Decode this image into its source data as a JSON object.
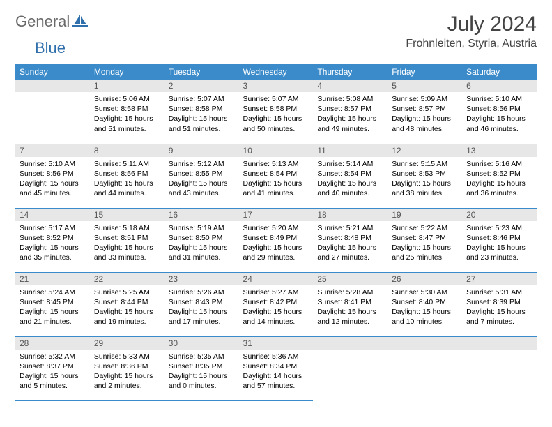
{
  "logo": {
    "text1": "General",
    "text2": "Blue"
  },
  "title": "July 2024",
  "location": "Frohnleiten, Styria, Austria",
  "colors": {
    "header_bg": "#3b8bca",
    "header_fg": "#ffffff",
    "daynum_bg": "#e7e7e7",
    "border": "#3b8bca",
    "logo_gray": "#6a6a6a",
    "logo_blue": "#2f6fab"
  },
  "day_headers": [
    "Sunday",
    "Monday",
    "Tuesday",
    "Wednesday",
    "Thursday",
    "Friday",
    "Saturday"
  ],
  "weeks": [
    [
      {
        "n": "",
        "sr": "",
        "ss": "",
        "dl": ""
      },
      {
        "n": "1",
        "sr": "5:06 AM",
        "ss": "8:58 PM",
        "dl": "15 hours and 51 minutes."
      },
      {
        "n": "2",
        "sr": "5:07 AM",
        "ss": "8:58 PM",
        "dl": "15 hours and 51 minutes."
      },
      {
        "n": "3",
        "sr": "5:07 AM",
        "ss": "8:58 PM",
        "dl": "15 hours and 50 minutes."
      },
      {
        "n": "4",
        "sr": "5:08 AM",
        "ss": "8:57 PM",
        "dl": "15 hours and 49 minutes."
      },
      {
        "n": "5",
        "sr": "5:09 AM",
        "ss": "8:57 PM",
        "dl": "15 hours and 48 minutes."
      },
      {
        "n": "6",
        "sr": "5:10 AM",
        "ss": "8:56 PM",
        "dl": "15 hours and 46 minutes."
      }
    ],
    [
      {
        "n": "7",
        "sr": "5:10 AM",
        "ss": "8:56 PM",
        "dl": "15 hours and 45 minutes."
      },
      {
        "n": "8",
        "sr": "5:11 AM",
        "ss": "8:56 PM",
        "dl": "15 hours and 44 minutes."
      },
      {
        "n": "9",
        "sr": "5:12 AM",
        "ss": "8:55 PM",
        "dl": "15 hours and 43 minutes."
      },
      {
        "n": "10",
        "sr": "5:13 AM",
        "ss": "8:54 PM",
        "dl": "15 hours and 41 minutes."
      },
      {
        "n": "11",
        "sr": "5:14 AM",
        "ss": "8:54 PM",
        "dl": "15 hours and 40 minutes."
      },
      {
        "n": "12",
        "sr": "5:15 AM",
        "ss": "8:53 PM",
        "dl": "15 hours and 38 minutes."
      },
      {
        "n": "13",
        "sr": "5:16 AM",
        "ss": "8:52 PM",
        "dl": "15 hours and 36 minutes."
      }
    ],
    [
      {
        "n": "14",
        "sr": "5:17 AM",
        "ss": "8:52 PM",
        "dl": "15 hours and 35 minutes."
      },
      {
        "n": "15",
        "sr": "5:18 AM",
        "ss": "8:51 PM",
        "dl": "15 hours and 33 minutes."
      },
      {
        "n": "16",
        "sr": "5:19 AM",
        "ss": "8:50 PM",
        "dl": "15 hours and 31 minutes."
      },
      {
        "n": "17",
        "sr": "5:20 AM",
        "ss": "8:49 PM",
        "dl": "15 hours and 29 minutes."
      },
      {
        "n": "18",
        "sr": "5:21 AM",
        "ss": "8:48 PM",
        "dl": "15 hours and 27 minutes."
      },
      {
        "n": "19",
        "sr": "5:22 AM",
        "ss": "8:47 PM",
        "dl": "15 hours and 25 minutes."
      },
      {
        "n": "20",
        "sr": "5:23 AM",
        "ss": "8:46 PM",
        "dl": "15 hours and 23 minutes."
      }
    ],
    [
      {
        "n": "21",
        "sr": "5:24 AM",
        "ss": "8:45 PM",
        "dl": "15 hours and 21 minutes."
      },
      {
        "n": "22",
        "sr": "5:25 AM",
        "ss": "8:44 PM",
        "dl": "15 hours and 19 minutes."
      },
      {
        "n": "23",
        "sr": "5:26 AM",
        "ss": "8:43 PM",
        "dl": "15 hours and 17 minutes."
      },
      {
        "n": "24",
        "sr": "5:27 AM",
        "ss": "8:42 PM",
        "dl": "15 hours and 14 minutes."
      },
      {
        "n": "25",
        "sr": "5:28 AM",
        "ss": "8:41 PM",
        "dl": "15 hours and 12 minutes."
      },
      {
        "n": "26",
        "sr": "5:30 AM",
        "ss": "8:40 PM",
        "dl": "15 hours and 10 minutes."
      },
      {
        "n": "27",
        "sr": "5:31 AM",
        "ss": "8:39 PM",
        "dl": "15 hours and 7 minutes."
      }
    ],
    [
      {
        "n": "28",
        "sr": "5:32 AM",
        "ss": "8:37 PM",
        "dl": "15 hours and 5 minutes."
      },
      {
        "n": "29",
        "sr": "5:33 AM",
        "ss": "8:36 PM",
        "dl": "15 hours and 2 minutes."
      },
      {
        "n": "30",
        "sr": "5:35 AM",
        "ss": "8:35 PM",
        "dl": "15 hours and 0 minutes."
      },
      {
        "n": "31",
        "sr": "5:36 AM",
        "ss": "8:34 PM",
        "dl": "14 hours and 57 minutes."
      },
      {
        "n": "",
        "sr": "",
        "ss": "",
        "dl": ""
      },
      {
        "n": "",
        "sr": "",
        "ss": "",
        "dl": ""
      },
      {
        "n": "",
        "sr": "",
        "ss": "",
        "dl": ""
      }
    ]
  ],
  "labels": {
    "sunrise": "Sunrise:",
    "sunset": "Sunset:",
    "daylight": "Daylight:"
  }
}
